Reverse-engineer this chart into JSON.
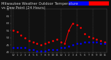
{
  "title": "Milwaukee Weather Outdoor Temperature",
  "subtitle": "vs Dew Point (24 Hours)",
  "bg_color": "#111111",
  "plot_bg": "#111111",
  "grid_color": "#555555",
  "temp_color": "#ff0000",
  "dew_color": "#0000ff",
  "text_color": "#cccccc",
  "tick_color": "#aaaaaa",
  "hours": [
    0,
    1,
    2,
    3,
    4,
    5,
    6,
    7,
    8,
    9,
    10,
    11,
    12,
    13,
    14,
    15,
    16,
    17,
    18,
    19,
    20,
    21,
    22,
    23
  ],
  "temp": [
    55,
    54,
    52,
    50,
    48,
    47,
    46,
    45,
    46,
    47,
    48,
    49,
    47,
    46,
    55,
    60,
    59,
    57,
    53,
    51,
    50,
    49,
    48,
    47
  ],
  "dew": [
    43,
    43,
    43,
    43,
    42,
    42,
    41,
    41,
    41,
    42,
    42,
    42,
    43,
    43,
    44,
    45,
    46,
    46,
    47,
    47,
    47,
    47,
    46,
    46
  ],
  "ylim": [
    40,
    70
  ],
  "ytick_vals": [
    40,
    45,
    50,
    55,
    60,
    65,
    70
  ],
  "xtick_labels": [
    "12",
    "1",
    "2",
    "3",
    "4",
    "5",
    "6",
    "7",
    "8",
    "9",
    "10",
    "11",
    "12",
    "1",
    "2",
    "3",
    "4",
    "5",
    "6",
    "7",
    "8",
    "9",
    "10",
    "11"
  ],
  "title_fontsize": 3.8,
  "axis_fontsize": 3.0,
  "marker_size": 1.0,
  "legend_bar_blue": "#0000ff",
  "legend_bar_red": "#ff0000",
  "grid_positions": [
    0,
    4,
    8,
    12,
    16,
    20
  ]
}
